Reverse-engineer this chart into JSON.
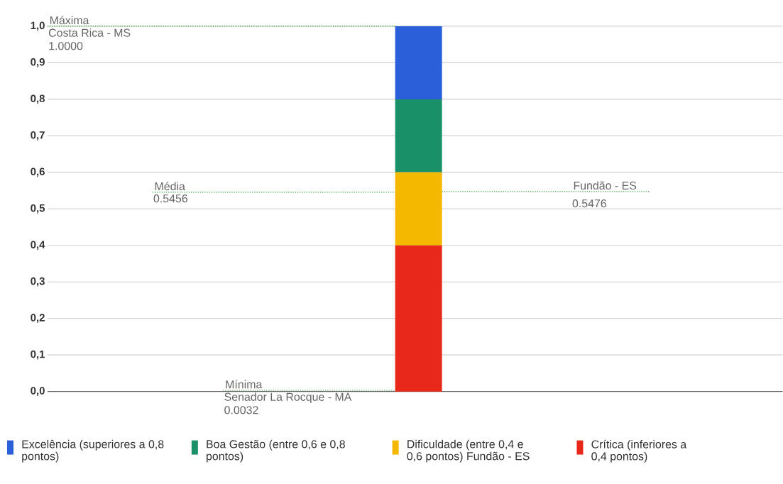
{
  "chart_data": {
    "type": "bar",
    "stacked": true,
    "categories": [
      null
    ],
    "series": [
      {
        "name": "Crítica (inferiores a 0,4 pontos)",
        "color": "#e8281a",
        "values": [
          0.4
        ]
      },
      {
        "name": "Dificuldade (entre 0,4 e 0,6 pontos) Fundão - ES",
        "color": "#f4b800",
        "values": [
          0.2
        ]
      },
      {
        "name": "Boa Gestão (entre 0,6 e 0,8 pontos)",
        "color": "#1a9068",
        "values": [
          0.2
        ]
      },
      {
        "name": "Excelência (superiores a 0,8 pontos)",
        "color": "#2b5fd9",
        "values": [
          0.2
        ]
      }
    ],
    "ylim": [
      0,
      1.0
    ],
    "yticks": [
      {
        "value": 0,
        "label": "0,0"
      },
      {
        "value": 0.1,
        "label": "0,1"
      },
      {
        "value": 0.2,
        "label": "0,2"
      },
      {
        "value": 0.3,
        "label": "0,3"
      },
      {
        "value": 0.4,
        "label": "0,4"
      },
      {
        "value": 0.5,
        "label": "0,5"
      },
      {
        "value": 0.6,
        "label": "0,6"
      },
      {
        "value": 0.7,
        "label": "0,7"
      },
      {
        "value": 0.8,
        "label": "0,8"
      },
      {
        "value": 0.9,
        "label": "0,9"
      },
      {
        "value": 1.0,
        "label": "1,0"
      }
    ],
    "grid": "y",
    "tick_labels": "y",
    "legend": "bottom",
    "ref_lines": [
      {
        "axis": "y",
        "value": 1.0,
        "label": "Máxima",
        "color": "#2ca02c",
        "line_style": "dotted"
      },
      {
        "axis": "y",
        "value": 0.5456,
        "label": "Média",
        "color": "#2ca02c",
        "line_style": "dotted"
      },
      {
        "axis": "y",
        "value": 0.5476,
        "label": "Fundão - ES",
        "color": "#2ca02c",
        "line_style": "dotted"
      },
      {
        "axis": "y",
        "value": 0.0032,
        "label": "Mínima",
        "color": "#2ca02c",
        "line_style": "dotted"
      }
    ],
    "annotations": [
      {
        "text": "Costa Rica - MS",
        "y": 1.0
      },
      {
        "text": "1.0000",
        "y": 1.0
      },
      {
        "text": "0.5456",
        "y": 0.5456
      },
      {
        "text": "0.5476",
        "y": 0.5476
      },
      {
        "text": "Senador La Rocque - MA",
        "y": 0.0032
      },
      {
        "text": "0.0032",
        "y": 0.0032
      }
    ]
  }
}
